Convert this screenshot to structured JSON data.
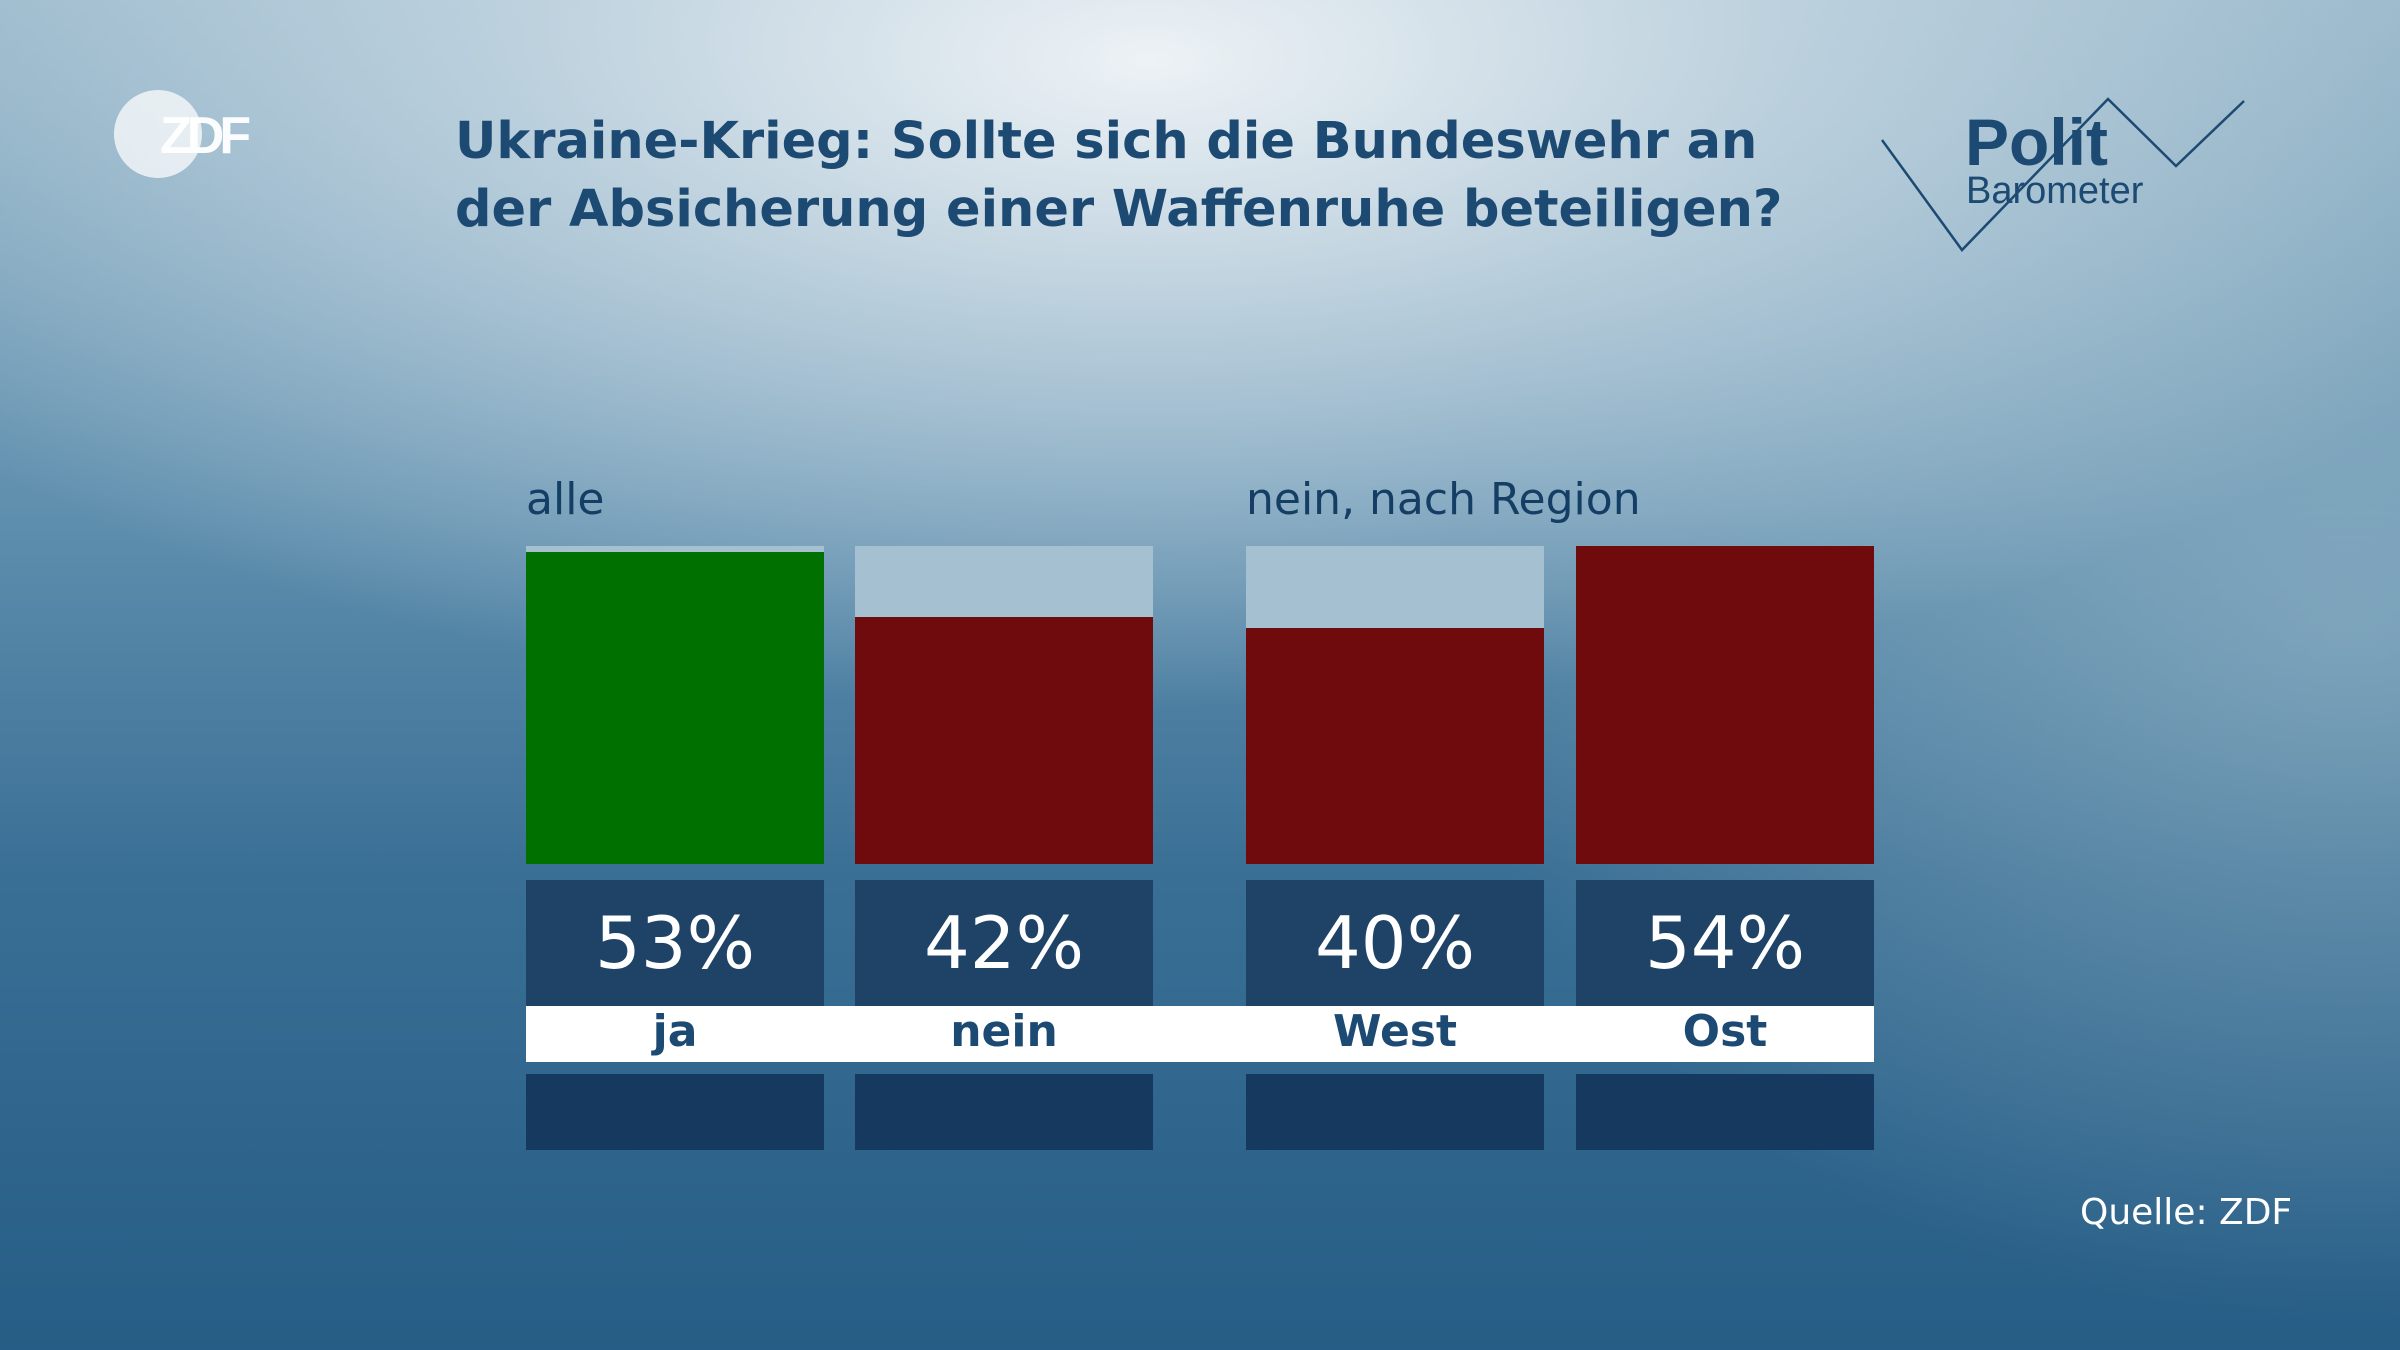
{
  "logo": {
    "brand": "ZDF"
  },
  "header": {
    "title": "Ukraine-Krieg: Sollte sich die Bundeswehr an der Absicherung einer Waffenruhe beteiligen?"
  },
  "politbarometer": {
    "line1": "Polit",
    "line2": "Barometer"
  },
  "colors": {
    "yes": "#007000",
    "no": "#700b0d",
    "track": "#a4c0d1",
    "value_box": "#1f4267",
    "title": "#1c4a72"
  },
  "chart_data": {
    "type": "bar",
    "title": "Ukraine-Krieg: Sollte sich die Bundeswehr an der Absicherung einer Waffenruhe beteiligen?",
    "unit": "%",
    "ylim": [
      0,
      54
    ],
    "groups": [
      {
        "label": "alle",
        "bars": [
          {
            "category": "ja",
            "value": 53,
            "value_label": "53%",
            "color": "yes"
          },
          {
            "category": "nein",
            "value": 42,
            "value_label": "42%",
            "color": "no"
          }
        ]
      },
      {
        "label": "nein, nach Region",
        "bars": [
          {
            "category": "West",
            "value": 40,
            "value_label": "40%",
            "color": "no"
          },
          {
            "category": "Ost",
            "value": 54,
            "value_label": "54%",
            "color": "no"
          }
        ]
      }
    ]
  },
  "footer": {
    "source": "Quelle: ZDF"
  }
}
